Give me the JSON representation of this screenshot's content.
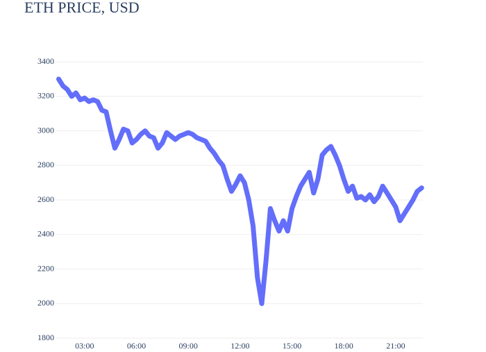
{
  "chart_data": {
    "type": "scatter",
    "title": "ETH PRICE, USD",
    "color": "#636efa",
    "grid": true,
    "x": [
      1.5,
      1.75,
      2.0,
      2.25,
      2.5,
      2.75,
      3.0,
      3.25,
      3.5,
      3.75,
      4.0,
      4.25,
      4.5,
      4.75,
      5.0,
      5.25,
      5.5,
      5.75,
      6.0,
      6.25,
      6.5,
      6.75,
      7.0,
      7.25,
      7.5,
      7.75,
      8.0,
      8.25,
      8.5,
      8.75,
      9.0,
      9.25,
      9.5,
      9.75,
      10.0,
      10.25,
      10.5,
      10.75,
      11.0,
      11.25,
      11.5,
      11.75,
      12.0,
      12.25,
      12.5,
      12.75,
      13.0,
      13.25,
      13.5,
      13.75,
      14.0,
      14.25,
      14.5,
      14.75,
      15.0,
      15.25,
      15.5,
      15.75,
      16.0,
      16.25,
      16.5,
      16.75,
      17.0,
      17.25,
      17.5,
      17.75,
      18.0,
      18.25,
      18.5,
      18.75,
      19.0,
      19.25,
      19.5,
      19.75,
      20.0,
      20.25,
      20.5,
      20.75,
      21.0,
      21.25,
      21.5,
      21.75,
      22.0,
      22.25,
      22.5
    ],
    "values": [
      3300,
      3260,
      3240,
      3200,
      3220,
      3180,
      3190,
      3170,
      3180,
      3170,
      3120,
      3110,
      3000,
      2900,
      2950,
      3010,
      3000,
      2930,
      2950,
      2980,
      3000,
      2970,
      2960,
      2900,
      2930,
      2990,
      2970,
      2950,
      2970,
      2980,
      2990,
      2980,
      2960,
      2950,
      2940,
      2900,
      2870,
      2830,
      2800,
      2720,
      2650,
      2690,
      2740,
      2700,
      2600,
      2450,
      2150,
      2000,
      2250,
      2550,
      2480,
      2420,
      2480,
      2420,
      2550,
      2620,
      2680,
      2720,
      2760,
      2640,
      2720,
      2860,
      2890,
      2910,
      2860,
      2800,
      2720,
      2650,
      2680,
      2610,
      2620,
      2600,
      2630,
      2590,
      2620,
      2680,
      2640,
      2600,
      2560,
      2480,
      2520,
      2560,
      2600,
      2650,
      2670
    ],
    "xlim": [
      1.32,
      22.57
    ],
    "xticks": [
      {
        "value": 3,
        "label": "03:00"
      },
      {
        "value": 6,
        "label": "06:00"
      },
      {
        "value": 9,
        "label": "09:00"
      },
      {
        "value": 12,
        "label": "12:00"
      },
      {
        "value": 15,
        "label": "15:00"
      },
      {
        "value": 18,
        "label": "18:00"
      },
      {
        "value": 21,
        "label": "21:00"
      }
    ],
    "ylim": [
      1800,
      3400
    ],
    "yticks": [
      1800,
      2000,
      2200,
      2400,
      2600,
      2800,
      3000,
      3200,
      3400
    ]
  }
}
